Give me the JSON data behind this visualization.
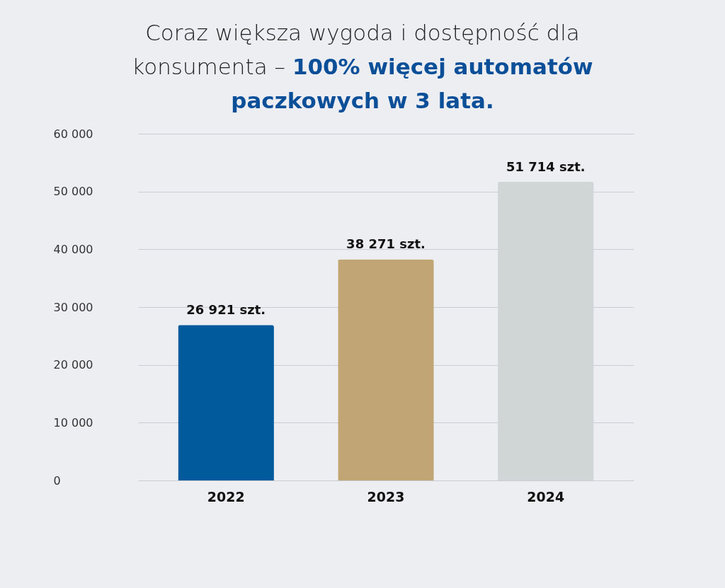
{
  "chart_data": {
    "type": "bar",
    "title": "Coraz większa wygoda i dostępność dla konsumenta –",
    "subtitle": "100% więcej automatów paczkowych w 3 lata.",
    "categories": [
      "2022",
      "2023",
      "2024"
    ],
    "values": [
      26921,
      38271,
      51714
    ],
    "colors": [
      "#005a9c",
      "#c1a574",
      "#d0d6d6"
    ],
    "value_labels": [
      "26 921 szt.",
      "38 271 szt.",
      "51 714 szt."
    ],
    "ylim": [
      0,
      60000
    ],
    "yticks": [
      {
        "value": 0,
        "label": "0"
      },
      {
        "value": 10000,
        "label": "10 000"
      },
      {
        "value": 20000,
        "label": "20 000"
      },
      {
        "value": 30000,
        "label": "30 000"
      },
      {
        "value": 40000,
        "label": "40 000"
      },
      {
        "value": 50000,
        "label": "50 000"
      },
      {
        "value": 60000,
        "label": "60 000"
      }
    ],
    "grid": "y"
  }
}
